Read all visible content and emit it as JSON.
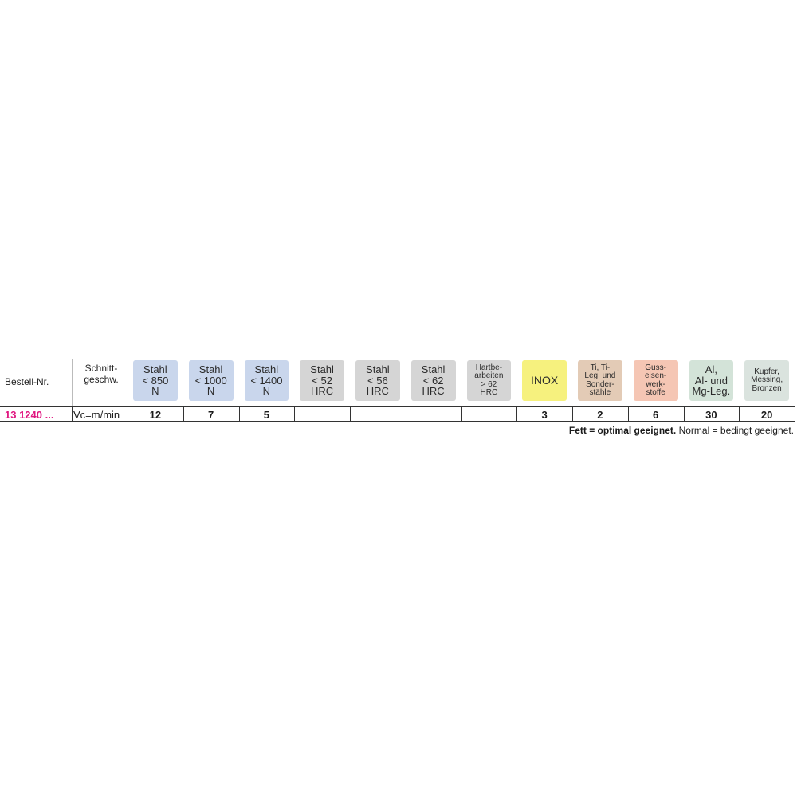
{
  "table": {
    "header": {
      "order_no": "Bestell-Nr.",
      "speed": [
        "Schnitt-",
        "geschw."
      ],
      "materials": [
        {
          "lines": [
            "Stahl",
            "< 850",
            "N"
          ],
          "color": "#c9d6ec"
        },
        {
          "lines": [
            "Stahl",
            "< 1000",
            "N"
          ],
          "color": "#c9d6ec"
        },
        {
          "lines": [
            "Stahl",
            "< 1400",
            "N"
          ],
          "color": "#c9d6ec"
        },
        {
          "lines": [
            "Stahl",
            "< 52",
            "HRC"
          ],
          "color": "#d5d5d5"
        },
        {
          "lines": [
            "Stahl",
            "< 56",
            "HRC"
          ],
          "color": "#d5d5d5"
        },
        {
          "lines": [
            "Stahl",
            "< 62",
            "HRC"
          ],
          "color": "#d5d5d5"
        },
        {
          "lines": [
            "Hartbe-",
            "arbeiten",
            "> 62",
            "HRC"
          ],
          "color": "#d5d5d5"
        },
        {
          "lines": [
            "INOX"
          ],
          "color": "#f6f17e"
        },
        {
          "lines": [
            "Ti, Ti-",
            "Leg. und",
            "Sonder-",
            "stähle"
          ],
          "color": "#e3cbb6"
        },
        {
          "lines": [
            "Guss-",
            "eisen-",
            "werk-",
            "stoffe"
          ],
          "color": "#f5c6b4"
        },
        {
          "lines": [
            "Al,",
            "Al- und",
            "Mg-Leg."
          ],
          "color": "#d3e3d8"
        },
        {
          "lines": [
            "Kupfer,",
            "Messing,",
            "Bronzen"
          ],
          "color": "#dae3de"
        }
      ]
    },
    "rows": [
      {
        "order_no": "13 1240 ...",
        "speed": "Vc=m/min",
        "values": [
          12,
          7,
          5,
          null,
          null,
          null,
          null,
          3,
          2,
          6,
          30,
          20
        ]
      }
    ],
    "footnote": {
      "bold": "Fett = optimal geeignet.",
      "normal": "Normal = bedingt geeignet."
    }
  }
}
